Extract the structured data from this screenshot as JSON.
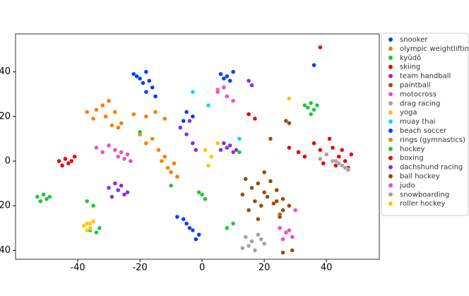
{
  "chart_data": {
    "type": "scatter",
    "legend": "outside right",
    "xlim": [
      -60,
      57
    ],
    "ylim": [
      -44,
      57
    ],
    "xticks": [
      -40,
      -20,
      0,
      20,
      40
    ],
    "yticks": [
      -40,
      -20,
      0,
      20,
      40
    ],
    "grid": false,
    "series": [
      {
        "name": "snooker",
        "color": "#023eff",
        "x": [
          -22,
          -20,
          -18,
          -19,
          -17,
          -21,
          -16,
          -15,
          -18,
          -5,
          -3,
          -1,
          -6,
          -2,
          -4,
          -8,
          36
        ],
        "values": [
          39,
          37,
          40,
          35,
          36,
          38,
          33,
          29,
          31,
          -28,
          -31,
          -33,
          -26,
          -35,
          -30,
          -25,
          43
        ]
      },
      {
        "name": "olympic weightlifting",
        "color": "#ff7c00",
        "x": [
          -37,
          -34,
          -32,
          -30,
          -28,
          -35,
          -31,
          -29,
          -27,
          -26,
          -22,
          -18,
          -15,
          -12,
          -20
        ],
        "values": [
          22,
          23,
          25,
          27,
          22,
          19,
          20,
          16,
          15,
          17,
          21,
          20,
          22,
          19,
          12
        ]
      },
      {
        "name": "kyūdō",
        "color": "#1ac938",
        "x": [
          -53,
          -51,
          -50,
          -52,
          -49,
          34,
          35,
          36,
          37,
          35,
          33,
          -20,
          -10
        ],
        "values": [
          -16,
          -15,
          -17,
          -18,
          -16,
          24,
          26,
          23,
          25,
          21,
          25,
          13,
          -11
        ]
      },
      {
        "name": "skiing",
        "color": "#e8000b",
        "x": [
          -46,
          -44,
          -43,
          -42,
          -41,
          -45,
          38,
          40,
          42,
          39,
          36,
          41,
          38,
          33
        ],
        "values": [
          0,
          1,
          -1,
          0,
          2,
          -2,
          5,
          3,
          6,
          -1,
          8,
          10,
          51,
          2
        ]
      },
      {
        "name": "team handball",
        "color": "#8b2be2",
        "x": [
          -30,
          -28,
          -27,
          -26,
          -25,
          -29,
          -24,
          -5,
          -3,
          -7,
          -2,
          -4
        ],
        "values": [
          -12,
          -10,
          -13,
          -11,
          -15,
          -16,
          -14,
          12,
          8,
          15,
          5,
          18
        ]
      },
      {
        "name": "paintball",
        "color": "#9f4800",
        "x": [
          14,
          16,
          18,
          20,
          22,
          24,
          17,
          19,
          21,
          23,
          15,
          25,
          13,
          26,
          18,
          20
        ],
        "values": [
          -8,
          -12,
          -10,
          -14,
          -9,
          -13,
          -18,
          -20,
          -16,
          -19,
          -22,
          -24,
          -15,
          -17,
          -26,
          -5
        ]
      },
      {
        "name": "motocross",
        "color": "#f14cc1",
        "x": [
          -34,
          -32,
          -30,
          -27,
          -25,
          -26,
          -24,
          -23,
          -28,
          8,
          10,
          5
        ],
        "values": [
          6,
          4,
          7,
          2,
          1,
          4,
          3,
          0,
          5,
          29,
          27,
          32
        ]
      },
      {
        "name": "drag racing",
        "color": "#a3a3a3",
        "x": [
          14,
          16,
          18,
          20,
          15,
          17,
          19,
          38,
          40,
          42
        ],
        "values": [
          -34,
          -36,
          -33,
          -37,
          -38,
          -40,
          -35,
          1,
          3,
          0
        ]
      },
      {
        "name": "yoga",
        "color": "#ffc400",
        "x": [
          -38,
          -37,
          -36,
          1,
          3,
          28
        ],
        "values": [
          -29,
          -31,
          -28,
          5,
          2,
          28
        ]
      },
      {
        "name": "muay thai",
        "color": "#00d7ff",
        "x": [
          -3,
          2,
          12
        ],
        "values": [
          31,
          25,
          10
        ]
      },
      {
        "name": "beach soccer",
        "color": "#023eff",
        "x": [
          6,
          8,
          10,
          9,
          7,
          -5,
          -6,
          -3
        ],
        "values": [
          39,
          38,
          40,
          36,
          37,
          22,
          18,
          20
        ]
      },
      {
        "name": "rings (gymnastics)",
        "color": "#ff7c00",
        "x": [
          -13,
          -11,
          -10,
          -12,
          -9,
          -14,
          -18,
          -16,
          -8
        ],
        "values": [
          0,
          -3,
          -5,
          2,
          -1,
          5,
          8,
          10,
          -7
        ]
      },
      {
        "name": "hockey",
        "color": "#1ac938",
        "x": [
          -36,
          -34,
          -33,
          -35,
          -37,
          0,
          1,
          -1,
          8,
          10,
          12
        ],
        "values": [
          -31,
          -32,
          -30,
          -20,
          -18,
          -15,
          -17,
          -14,
          -30,
          -28,
          4
        ]
      },
      {
        "name": "boxing",
        "color": "#e8000b",
        "x": [
          44,
          46,
          48,
          45,
          43,
          47,
          28,
          31,
          15,
          17
        ],
        "values": [
          2,
          0,
          3,
          5,
          -2,
          -3,
          6,
          4,
          21,
          19
        ]
      },
      {
        "name": "dachshund racing",
        "color": "#8b2be2",
        "x": [
          8,
          10,
          7,
          9,
          11,
          15,
          16,
          6
        ],
        "values": [
          6,
          4,
          8,
          7,
          5,
          36,
          34,
          5
        ]
      },
      {
        "name": "ball hockey",
        "color": "#9f4800",
        "x": [
          24,
          26,
          28,
          25,
          27,
          28,
          29,
          26,
          22
        ],
        "values": [
          -18,
          -22,
          -20,
          -25,
          18,
          17,
          -40,
          -41,
          10
        ]
      },
      {
        "name": "judo",
        "color": "#f14cc1",
        "x": [
          25,
          27,
          29,
          26,
          28,
          30,
          5,
          7
        ],
        "values": [
          -30,
          -32,
          -34,
          -35,
          -31,
          -22,
          31,
          33
        ]
      },
      {
        "name": "snowboarding",
        "color": "#a3a3a3",
        "x": [
          44,
          46,
          45,
          43,
          47,
          13
        ],
        "values": [
          -1,
          -3,
          -2,
          0,
          -4,
          -39
        ]
      },
      {
        "name": "roller hockey",
        "color": "#ffc400",
        "x": [
          -37,
          -36,
          -35,
          -38,
          2,
          5
        ],
        "values": [
          -28,
          -30,
          -27,
          -29,
          -2,
          8
        ]
      }
    ]
  }
}
